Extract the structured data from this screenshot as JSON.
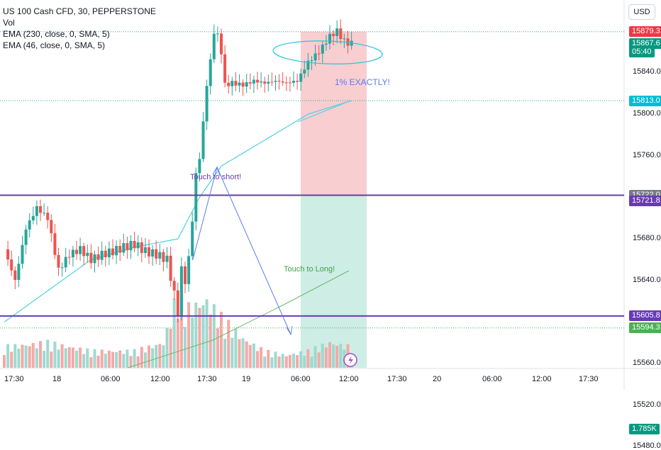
{
  "header": {
    "symbol": "US 100 Cash CFD, 30, PEPPERSTONE",
    "vol_label": "Vol",
    "ema1": "EMA (230, close, 0, SMA, 5)",
    "ema2": "EMA (46, close, 0, SMA, 5)",
    "currency_button": "USD"
  },
  "colors": {
    "up": "#26a69a",
    "down": "#ef5350",
    "ema": "#4dd0e1",
    "level_line": "#673ab7",
    "stop_zone": "#f7c5c8",
    "target_zone": "#c9ebe2",
    "annotation": "#5b7cf0",
    "ema2_line": "#66bb6a"
  },
  "price_tags": [
    {
      "text": "15879.3",
      "price": 15879.3,
      "color": "#f23645"
    },
    {
      "text": "15867.6",
      "price": 15867.6,
      "color": "#089981"
    },
    {
      "text": "05:40",
      "price": 15860.0,
      "color": "#089981"
    },
    {
      "text": "15813.0",
      "price": 15813.0,
      "color": "#00bcd4"
    },
    {
      "text": "15722.0",
      "price": 15722.0,
      "color": "#787b86"
    },
    {
      "text": "15721.8",
      "price": 15716.5,
      "color": "#673ab7"
    },
    {
      "text": "15605.8",
      "price": 15605.8,
      "color": "#673ab7"
    },
    {
      "text": "15594.3",
      "price": 15594.3,
      "color": "#4caf50"
    },
    {
      "text": "1.785K",
      "price": 15497.0,
      "color": "#089981"
    }
  ],
  "annotations": {
    "exactly": "1% EXACTLY!",
    "touch_short": "Touch to short!",
    "touch_long": "Touch to Long!"
  },
  "chart_data": {
    "type": "candlestick",
    "y_axis_ticks": [
      15840.0,
      15800.0,
      15760.0,
      15680.0,
      15640.0,
      15560.0,
      15520.0,
      15480.0
    ],
    "y_axis_labels": [
      "15840.0",
      "15800.0",
      "15760.0",
      "15680.0",
      "15640.0",
      "15560.0",
      "15520.0",
      "15480.0"
    ],
    "x_axis_labels": [
      "17:30",
      "18",
      "06:00",
      "12:00",
      "17:30",
      "19",
      "06:00",
      "12:00",
      "17:30",
      "20",
      "06:00",
      "12:00",
      "17:30"
    ],
    "horizontal_levels": [
      15722.0,
      15605.8
    ],
    "dotted_levels": [
      15879.3,
      15813.0,
      15594.3
    ],
    "position": {
      "entry": 15722.0,
      "stop": 15879.3,
      "target": 15594.3
    },
    "price_path": [
      [
        0,
        15670
      ],
      [
        3,
        15640
      ],
      [
        6,
        15690
      ],
      [
        9,
        15710
      ],
      [
        12,
        15700
      ],
      [
        15,
        15650
      ],
      [
        18,
        15665
      ],
      [
        21,
        15670
      ],
      [
        24,
        15660
      ],
      [
        27,
        15665
      ],
      [
        30,
        15668
      ],
      [
        33,
        15672
      ],
      [
        36,
        15675
      ],
      [
        39,
        15668
      ],
      [
        42,
        15665
      ],
      [
        45,
        15660
      ],
      [
        48,
        15610
      ],
      [
        49,
        15650
      ],
      [
        50,
        15640
      ],
      [
        51,
        15660
      ],
      [
        52,
        15700
      ],
      [
        53,
        15740
      ],
      [
        54,
        15760
      ],
      [
        55,
        15790
      ],
      [
        56,
        15830
      ],
      [
        57,
        15850
      ],
      [
        58,
        15880
      ],
      [
        59,
        15875
      ],
      [
        60,
        15860
      ],
      [
        61,
        15828
      ],
      [
        63,
        15830
      ],
      [
        66,
        15828
      ],
      [
        69,
        15832
      ],
      [
        72,
        15830
      ],
      [
        75,
        15832
      ],
      [
        78,
        15830
      ],
      [
        81,
        15832
      ],
      [
        84,
        15850
      ],
      [
        87,
        15860
      ],
      [
        90,
        15875
      ],
      [
        92,
        15880
      ],
      [
        94,
        15870
      ],
      [
        96,
        15867.6
      ]
    ],
    "ema_path": [
      [
        0,
        15600
      ],
      [
        12,
        15630
      ],
      [
        24,
        15660
      ],
      [
        36,
        15672
      ],
      [
        48,
        15680
      ],
      [
        54,
        15720
      ],
      [
        60,
        15750
      ],
      [
        72,
        15775
      ],
      [
        84,
        15800
      ],
      [
        96,
        15813
      ]
    ],
    "volume_path": [
      [
        0,
        0.25
      ],
      [
        12,
        0.3
      ],
      [
        24,
        0.2
      ],
      [
        36,
        0.2
      ],
      [
        44,
        0.3
      ],
      [
        48,
        0.9
      ],
      [
        50,
        0.7
      ],
      [
        56,
        0.8
      ],
      [
        60,
        0.6
      ],
      [
        66,
        0.35
      ],
      [
        72,
        0.2
      ],
      [
        78,
        0.15
      ],
      [
        84,
        0.2
      ],
      [
        90,
        0.3
      ],
      [
        96,
        0.25
      ]
    ],
    "volume_last": "1.785K"
  }
}
